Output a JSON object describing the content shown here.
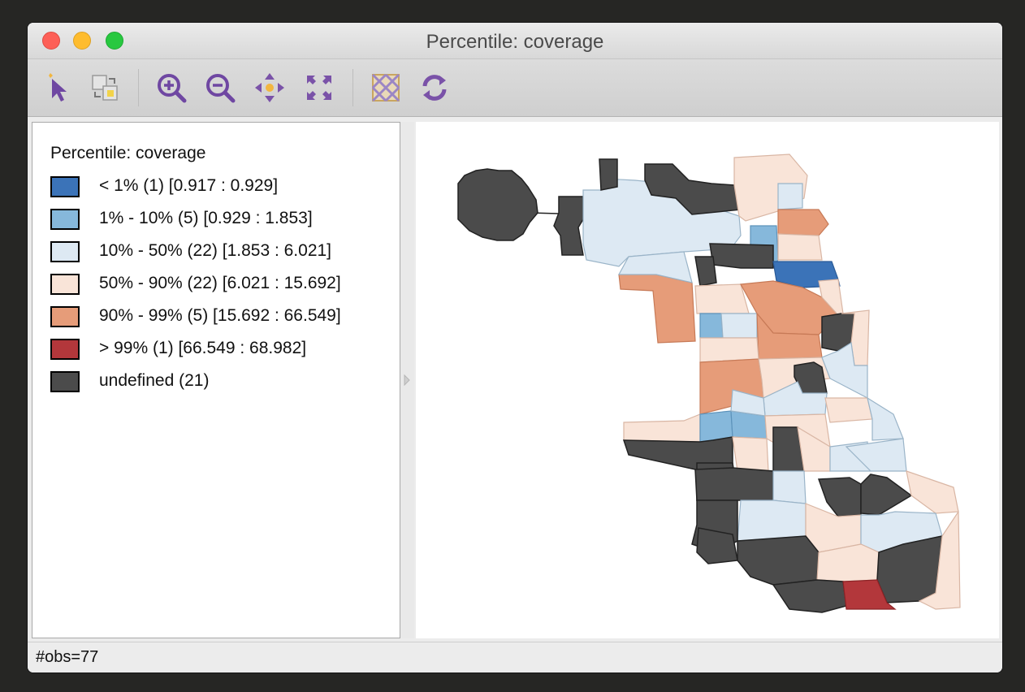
{
  "window": {
    "title": "Percentile: coverage"
  },
  "toolbar": {
    "icons": [
      "select-pointer-icon",
      "copy-selection-icon",
      "zoom-in-icon",
      "zoom-out-icon",
      "pan-icon",
      "fit-extent-icon",
      "basemap-icon",
      "refresh-icon"
    ],
    "accent_color": "#7a52a8"
  },
  "legend": {
    "title": "Percentile: coverage",
    "items": [
      {
        "label": "< 1% (1)  [0.917 : 0.929]",
        "color": "#3b73b8"
      },
      {
        "label": "1% - 10% (5)  [0.929 : 1.853]",
        "color": "#86b8db"
      },
      {
        "label": "10% - 50% (22)  [1.853 : 6.021]",
        "color": "#dde9f3"
      },
      {
        "label": "50% - 90% (22)  [6.021 : 15.692]",
        "color": "#f9e4d8"
      },
      {
        "label": "90% - 99% (5)  [15.692 : 66.549]",
        "color": "#e69c79"
      },
      {
        "label": "> 99% (1)  [66.549 : 68.982]",
        "color": "#b3373b"
      },
      {
        "label": "undefined (21)",
        "color": "#4b4b4b"
      }
    ]
  },
  "status": {
    "obs": "#obs=77"
  }
}
